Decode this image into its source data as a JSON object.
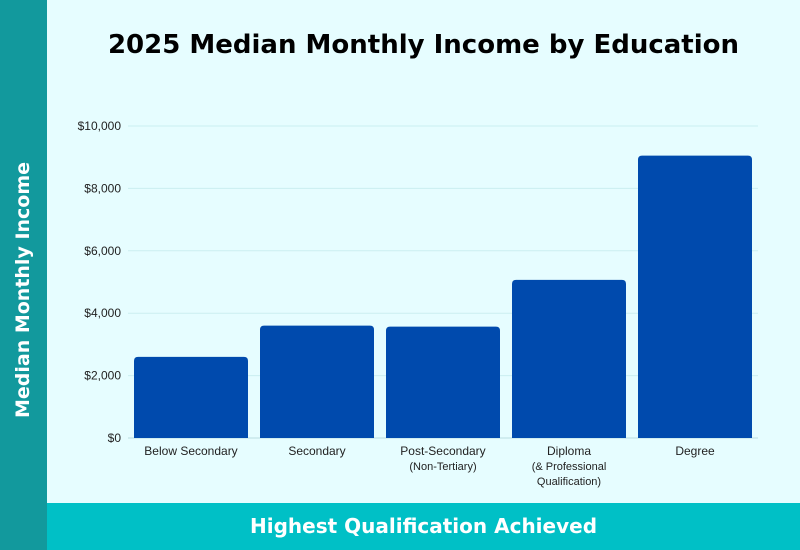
{
  "chart_data": {
    "type": "bar",
    "title": "2025 Median Monthly Income by Education",
    "xlabel": "Highest Qualification Achieved",
    "ylabel": "Median Monthly Income",
    "categories": [
      [
        "Below Secondary"
      ],
      [
        "Secondary"
      ],
      [
        "Post-Secondary",
        "(Non-Tertiary)"
      ],
      [
        "Diploma",
        "(& Professional",
        "Qualification)"
      ],
      [
        "Degree"
      ]
    ],
    "values": [
      2600,
      3600,
      3570,
      5070,
      9050
    ],
    "ylim": [
      0,
      10000
    ],
    "yticks": [
      "$0",
      "$2,000",
      "$4,000",
      "$6,000",
      "$8,000",
      "$10,000"
    ],
    "grid": true,
    "bar_color": "#004aad",
    "colors": {
      "ylabel_band": "#12999d",
      "xlabel_band": "#00c0c6",
      "background": "#e6fdff"
    }
  }
}
